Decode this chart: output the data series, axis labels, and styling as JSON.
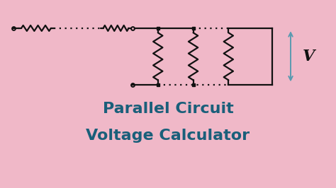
{
  "background_color": "#f0b8c8",
  "title_line1": "Parallel Circuit",
  "title_line2": "Voltage Calculator",
  "title_color": "#1a5f7a",
  "title_fontsize": 16,
  "circuit_color": "#111111",
  "arrow_color": "#5a9ab0",
  "voltage_label": "V",
  "voltage_label_color": "#111111",
  "voltage_label_fontsize": 16,
  "figwidth": 4.74,
  "figheight": 2.66,
  "dpi": 100
}
